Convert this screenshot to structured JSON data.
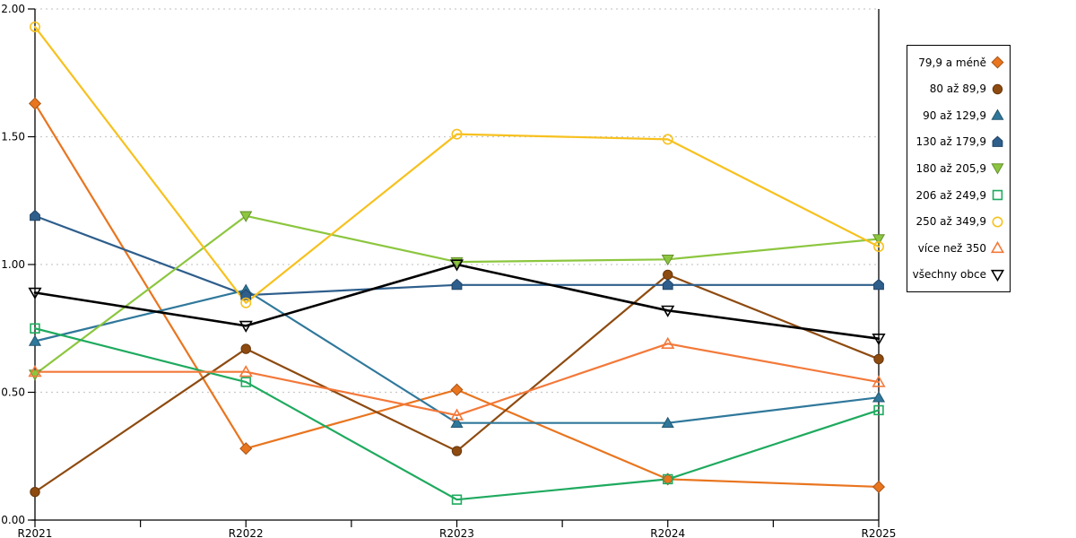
{
  "chart_data": {
    "type": "line",
    "title": "",
    "xlabel": "",
    "ylabel": "",
    "x_categories": [
      "R2021",
      "R2022",
      "R2023",
      "R2024",
      "R2025"
    ],
    "ylim": [
      0,
      2
    ],
    "ytick_labels": [
      "0.00",
      "0.50",
      "1.00",
      "1.50",
      "2.00"
    ],
    "yticks": [
      0,
      0.5,
      1,
      1.5,
      2
    ],
    "grid": "horizontal dashed",
    "legend_position": "right-outside",
    "series": [
      {
        "name": "79,9 a méně",
        "marker": "diamond",
        "marker_style": "filled",
        "color": "#E9751F",
        "values": [
          1.63,
          0.28,
          0.51,
          0.16,
          0.13
        ]
      },
      {
        "name": "80 až 89,9",
        "marker": "circle",
        "marker_style": "filled",
        "color": "#8E4B10",
        "values": [
          0.11,
          0.67,
          0.27,
          0.96,
          0.63
        ]
      },
      {
        "name": "90 až 129,9",
        "marker": "triangle-up",
        "marker_style": "filled",
        "color": "#30789B",
        "values": [
          0.7,
          0.9,
          0.38,
          0.38,
          0.48
        ]
      },
      {
        "name": "130 až 179,9",
        "marker": "pentagon",
        "marker_style": "filled",
        "color": "#2E5E8C",
        "values": [
          1.19,
          0.88,
          0.92,
          0.92,
          0.92
        ]
      },
      {
        "name": "180 až 205,9",
        "marker": "triangle-down",
        "marker_style": "filled",
        "color": "#8CC63F",
        "values": [
          0.57,
          1.19,
          1.01,
          1.02,
          1.1
        ]
      },
      {
        "name": "206 až 249,9",
        "marker": "square",
        "marker_style": "open",
        "color": "#1FAA5F",
        "values": [
          0.75,
          0.54,
          0.08,
          0.16,
          0.43
        ]
      },
      {
        "name": "250 až 349,9",
        "marker": "circle",
        "marker_style": "open",
        "color": "#F7C11E",
        "values": [
          1.93,
          0.85,
          1.51,
          1.49,
          1.07
        ]
      },
      {
        "name": "více než 350",
        "marker": "triangle-up",
        "marker_style": "open",
        "color": "#F3793A",
        "values": [
          0.58,
          0.58,
          0.41,
          0.69,
          0.54
        ]
      },
      {
        "name": "všechny obce",
        "marker": "triangle-down",
        "marker_style": "open",
        "color": "#000000",
        "values": [
          0.89,
          0.76,
          1.0,
          0.82,
          0.71
        ]
      }
    ]
  },
  "colors": {
    "background": "#FFFFFF",
    "axis": "#000000",
    "gridline": "#C9C9C9",
    "text": "#000000"
  }
}
